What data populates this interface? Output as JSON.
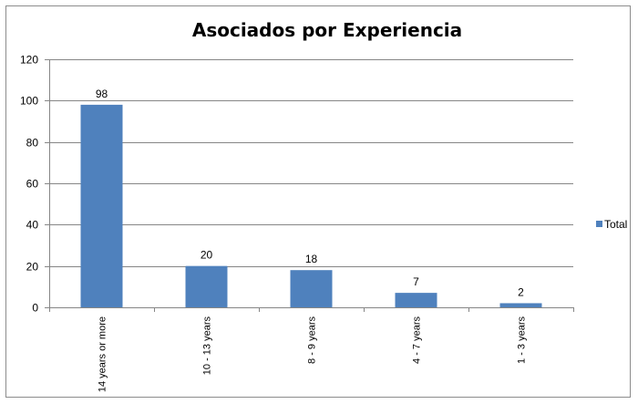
{
  "chart_data": {
    "type": "bar",
    "title": "Asociados por Experiencia",
    "categories": [
      "14 years or more",
      "10 - 13 years",
      "8 - 9 years",
      "4 - 7 years",
      "1 - 3 years"
    ],
    "series": [
      {
        "name": "Total",
        "values": [
          98,
          20,
          18,
          7,
          2
        ],
        "color": "#4f81bd"
      }
    ],
    "ylim": [
      0,
      120
    ],
    "yticks": [
      0,
      20,
      40,
      60,
      80,
      100,
      120
    ],
    "grid": true,
    "legend": "right",
    "data_labels": true
  }
}
